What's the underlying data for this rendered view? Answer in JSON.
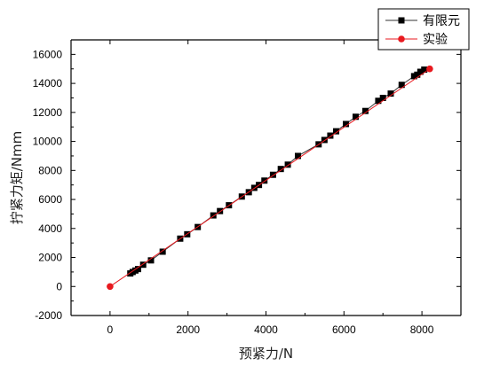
{
  "chart_data": {
    "type": "scatter",
    "xlabel": "预紧力/N",
    "ylabel": "拧紧力矩/Nmm",
    "xlim": [
      -1000,
      9000
    ],
    "ylim": [
      -2000,
      17000
    ],
    "xticks": [
      0,
      2000,
      4000,
      6000,
      8000
    ],
    "yticks": [
      -2000,
      0,
      2000,
      4000,
      6000,
      8000,
      10000,
      12000,
      14000,
      16000
    ],
    "xtick_labels": [
      "0",
      "2000",
      "4000",
      "6000",
      "8000"
    ],
    "ytick_labels": [
      "-2000",
      "0",
      "2000",
      "4000",
      "6000",
      "8000",
      "10000",
      "12000",
      "14000",
      "16000"
    ],
    "legend_position": "top-right",
    "series": [
      {
        "name": "有限元",
        "color": "#000000",
        "marker": "square",
        "x": [
          520,
          580,
          650,
          720,
          850,
          1050,
          1350,
          1800,
          1980,
          2250,
          2650,
          2820,
          3050,
          3380,
          3560,
          3700,
          3820,
          3960,
          4180,
          4380,
          4560,
          4820,
          5350,
          5500,
          5650,
          5800,
          6050,
          6300,
          6550,
          6880,
          7000,
          7200,
          7480,
          7800,
          7880,
          7960,
          8060
        ],
        "y": [
          900,
          1000,
          1100,
          1200,
          1500,
          1800,
          2400,
          3300,
          3600,
          4100,
          4900,
          5200,
          5600,
          6200,
          6500,
          6800,
          7000,
          7300,
          7700,
          8100,
          8400,
          9000,
          9800,
          10100,
          10400,
          10700,
          11200,
          11700,
          12100,
          12800,
          13000,
          13300,
          13900,
          14500,
          14600,
          14800,
          14950
        ]
      },
      {
        "name": "实验",
        "color": "#e8191f",
        "marker": "circle",
        "x": [
          0,
          8200
        ],
        "y": [
          0,
          15000
        ]
      }
    ]
  }
}
